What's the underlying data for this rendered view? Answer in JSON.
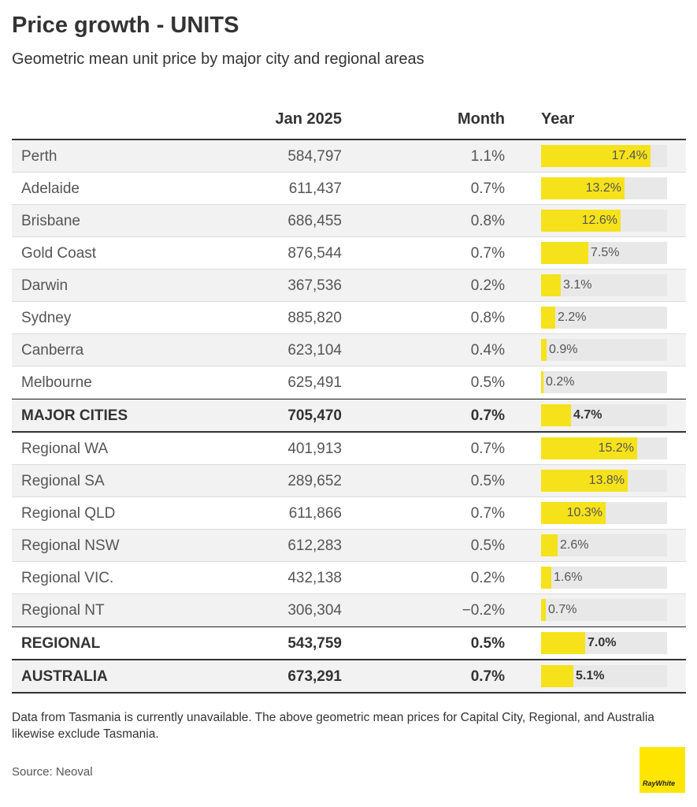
{
  "title": "Price growth  - UNITS",
  "subtitle": "Geometric mean unit price by major city and regional areas",
  "columns": {
    "price": "Jan 2025",
    "month": "Month",
    "year": "Year"
  },
  "chart_data": {
    "type": "table",
    "title": "Price growth  - UNITS",
    "subtitle": "Geometric mean unit price by major city and regional areas",
    "columns": [
      "",
      "Jan 2025",
      "Month",
      "Year"
    ],
    "year_bar_scale_max": 20,
    "rows": [
      {
        "name": "Perth",
        "price": "584,797",
        "month": "1.1%",
        "year": 17.4,
        "year_label": "17.4%",
        "bold": false
      },
      {
        "name": "Adelaide",
        "price": "611,437",
        "month": "0.7%",
        "year": 13.2,
        "year_label": "13.2%",
        "bold": false
      },
      {
        "name": "Brisbane",
        "price": "686,455",
        "month": "0.8%",
        "year": 12.6,
        "year_label": "12.6%",
        "bold": false
      },
      {
        "name": "Gold Coast",
        "price": "876,544",
        "month": "0.7%",
        "year": 7.5,
        "year_label": "7.5%",
        "bold": false
      },
      {
        "name": "Darwin",
        "price": "367,536",
        "month": "0.2%",
        "year": 3.1,
        "year_label": "3.1%",
        "bold": false
      },
      {
        "name": "Sydney",
        "price": "885,820",
        "month": "0.8%",
        "year": 2.2,
        "year_label": "2.2%",
        "bold": false
      },
      {
        "name": "Canberra",
        "price": "623,104",
        "month": "0.4%",
        "year": 0.9,
        "year_label": "0.9%",
        "bold": false
      },
      {
        "name": "Melbourne",
        "price": "625,491",
        "month": "0.5%",
        "year": 0.2,
        "year_label": "0.2%",
        "bold": false
      },
      {
        "name": "MAJOR CITIES",
        "price": "705,470",
        "month": "0.7%",
        "year": 4.7,
        "year_label": "4.7%",
        "bold": true
      },
      {
        "name": "Regional WA",
        "price": "401,913",
        "month": "0.7%",
        "year": 15.2,
        "year_label": "15.2%",
        "bold": false
      },
      {
        "name": "Regional SA",
        "price": "289,652",
        "month": "0.5%",
        "year": 13.8,
        "year_label": "13.8%",
        "bold": false
      },
      {
        "name": "Regional QLD",
        "price": "611,866",
        "month": "0.7%",
        "year": 10.3,
        "year_label": "10.3%",
        "bold": false
      },
      {
        "name": "Regional NSW",
        "price": "612,283",
        "month": "0.5%",
        "year": 2.6,
        "year_label": "2.6%",
        "bold": false
      },
      {
        "name": "Regional VIC.",
        "price": "432,138",
        "month": "0.2%",
        "year": 1.6,
        "year_label": "1.6%",
        "bold": false
      },
      {
        "name": "Regional NT",
        "price": "306,304",
        "month": "−0.2%",
        "year": 0.7,
        "year_label": "0.7%",
        "bold": false
      },
      {
        "name": "REGIONAL",
        "price": "543,759",
        "month": "0.5%",
        "year": 7.0,
        "year_label": "7.0%",
        "bold": true
      },
      {
        "name": "AUSTRALIA",
        "price": "673,291",
        "month": "0.7%",
        "year": 5.1,
        "year_label": "5.1%",
        "bold": true
      }
    ],
    "colors": {
      "bar": "#f5e21b",
      "track": "#e8e8e8"
    }
  },
  "note": "Data from Tasmania is currently unavailable. The above geometric mean prices for Capital City, Regional, and Australia likewise exclude Tasmania.",
  "source": "Source: Neoval",
  "logo": "RayWhite"
}
